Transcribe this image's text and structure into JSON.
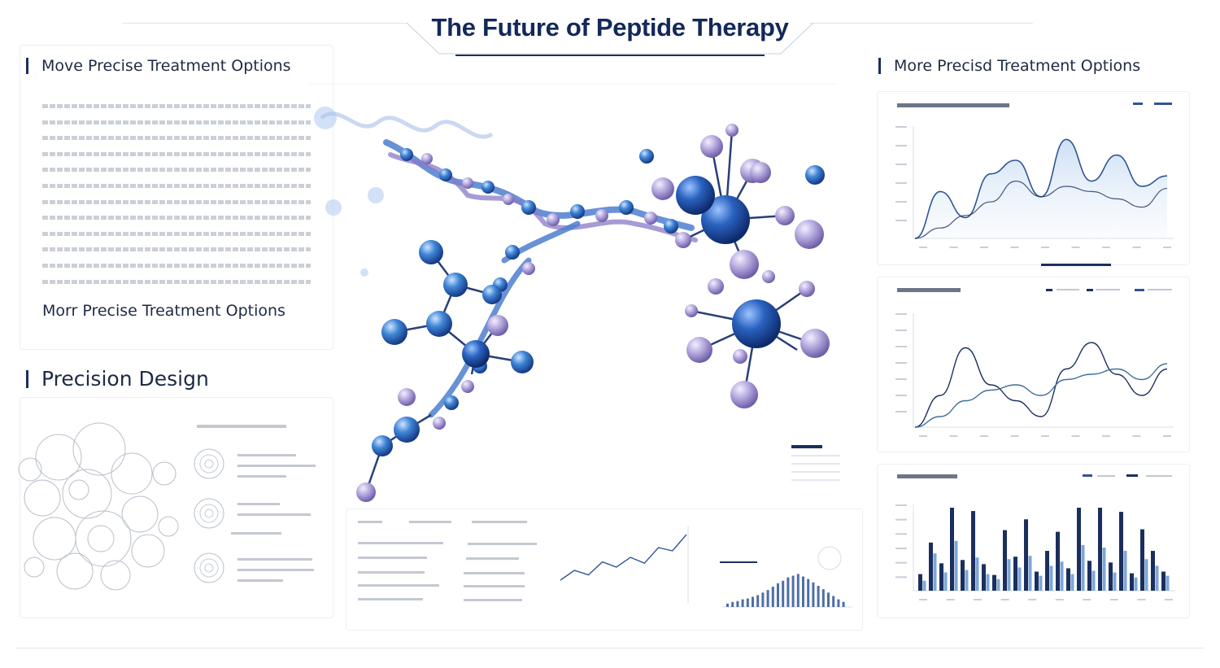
{
  "page": {
    "title": "The Future of Peptide Therapy"
  },
  "left_panel": {
    "heading": "Move Precise Treatment Options",
    "sub_heading": "Morr Precise Treatment Options",
    "design_heading": "Precision Design"
  },
  "right_panel": {
    "heading": "More Precisd Treatment Options"
  },
  "colors": {
    "title": "#14285a",
    "accent_dark": "#1b2f5e",
    "accent_mid": "#2f5597",
    "accent_light": "#7ea6d6",
    "molecule_blue": "#3b78c8",
    "molecule_lilac": "#a79bd0"
  },
  "chart_data": [
    {
      "type": "area",
      "series": [
        {
          "values": [
            0,
            45,
            20,
            62,
            75,
            40,
            95,
            55,
            80,
            50,
            60
          ]
        },
        {
          "values": [
            0,
            10,
            22,
            35,
            55,
            40,
            50,
            45,
            38,
            30,
            48
          ]
        }
      ]
    },
    {
      "type": "line",
      "series": [
        {
          "values": [
            0,
            30,
            75,
            40,
            25,
            10,
            55,
            80,
            50,
            30,
            55
          ]
        },
        {
          "values": [
            0,
            10,
            25,
            35,
            40,
            30,
            45,
            50,
            55,
            45,
            60
          ]
        }
      ]
    },
    {
      "type": "bar",
      "series": [
        {
          "values": [
            20,
            58,
            33,
            100,
            37,
            96,
            32,
            19,
            73,
            41,
            86,
            23,
            48,
            71,
            27,
            100,
            36,
            100,
            34,
            95,
            21,
            74,
            48,
            23
          ]
        },
        {
          "values": [
            12,
            45,
            22,
            60,
            25,
            40,
            20,
            14,
            38,
            28,
            42,
            18,
            30,
            35,
            20,
            55,
            24,
            52,
            22,
            48,
            16,
            38,
            30,
            18
          ]
        }
      ]
    },
    {
      "type": "line",
      "series": [
        {
          "values": [
            10,
            25,
            18,
            38,
            30,
            45,
            36,
            60,
            55,
            80
          ]
        }
      ]
    },
    {
      "type": "bar",
      "series": [
        {
          "values": [
            8,
            12,
            14,
            18,
            20,
            24,
            28,
            34,
            40,
            48,
            56,
            62,
            70,
            74,
            78,
            72,
            66,
            58,
            50,
            42,
            34,
            26,
            18,
            12
          ]
        }
      ]
    }
  ]
}
